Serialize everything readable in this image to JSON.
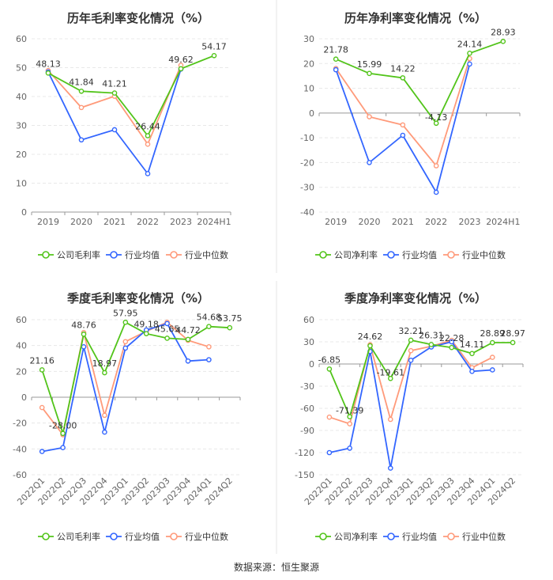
{
  "source": "数据来源：恒生聚源",
  "colors": {
    "company": "#52c41a",
    "industry_avg": "#3366ff",
    "industry_median": "#ff9a7a"
  },
  "chart_data": [
    {
      "type": "line",
      "title": "历年毛利率变化情况（%）",
      "categories": [
        "2019",
        "2020",
        "2021",
        "2022",
        "2023",
        "2024H1"
      ],
      "ylim": [
        0,
        60
      ],
      "yticks": [
        0,
        10,
        20,
        30,
        40,
        50,
        60
      ],
      "series": [
        {
          "name": "公司毛利率",
          "values": [
            48.13,
            41.84,
            41.21,
            26.44,
            49.62,
            54.17
          ]
        },
        {
          "name": "行业均值",
          "values": [
            48.5,
            25.0,
            28.5,
            13.3,
            49.5,
            null
          ]
        },
        {
          "name": "行业中位数",
          "values": [
            49.0,
            36.2,
            40.1,
            23.5,
            50.8,
            null
          ]
        }
      ],
      "labels": [
        "48.13",
        "41.84",
        "41.21",
        "26.44",
        "49.62",
        "54.17"
      ]
    },
    {
      "type": "line",
      "title": "历年净利率变化情况（%）",
      "categories": [
        "2019",
        "2020",
        "2021",
        "2022",
        "2023",
        "2024H1"
      ],
      "ylim": [
        -40,
        30
      ],
      "yticks": [
        -40,
        -30,
        -20,
        -10,
        0,
        10,
        20,
        30
      ],
      "series": [
        {
          "name": "公司净利率",
          "values": [
            21.78,
            15.99,
            14.22,
            -4.13,
            24.14,
            28.93
          ]
        },
        {
          "name": "行业均值",
          "values": [
            17.5,
            -20.0,
            -9.0,
            -32.0,
            19.8,
            null
          ]
        },
        {
          "name": "行业中位数",
          "values": [
            18.0,
            -1.5,
            -4.8,
            -21.3,
            22.0,
            null
          ]
        }
      ],
      "labels": [
        "21.78",
        "15.99",
        "14.22",
        "-4.13",
        "24.14",
        "28.93"
      ]
    },
    {
      "type": "line",
      "title": "季度毛利率变化情况（%）",
      "categories": [
        "2022Q1",
        "2022Q2",
        "2022Q3",
        "2022Q4",
        "2023Q1",
        "2023Q2",
        "2023Q3",
        "2023Q4",
        "2024Q1",
        "2024Q2"
      ],
      "ylim": [
        -60,
        60
      ],
      "yticks": [
        -60,
        -40,
        -20,
        0,
        20,
        40,
        60
      ],
      "series": [
        {
          "name": "公司毛利率",
          "values": [
            21.16,
            -28.0,
            48.76,
            18.97,
            57.95,
            49.18,
            45.65,
            44.72,
            54.68,
            53.75
          ]
        },
        {
          "name": "行业均值",
          "values": [
            -42.0,
            -39.0,
            39.0,
            -27.0,
            38.0,
            52.0,
            57.0,
            28.0,
            29.0,
            null
          ]
        },
        {
          "name": "行业中位数",
          "values": [
            -8.0,
            -29.0,
            50.0,
            -14.0,
            43.0,
            51.0,
            58.0,
            44.0,
            39.0,
            null
          ]
        }
      ],
      "labels": [
        "21.16",
        "-28.00",
        "48.76",
        "18.97",
        "57.95",
        "49.18",
        "45.65",
        "44.72",
        "54.68",
        "53.75"
      ]
    },
    {
      "type": "line",
      "title": "季度净利率变化情况（%）",
      "categories": [
        "2022Q1",
        "2022Q2",
        "2022Q3",
        "2022Q4",
        "2023Q1",
        "2023Q2",
        "2023Q3",
        "2023Q4",
        "2024Q1",
        "2024Q2"
      ],
      "ylim": [
        -150,
        60
      ],
      "yticks": [
        -150,
        -120,
        -90,
        -60,
        -30,
        0,
        30,
        60
      ],
      "series": [
        {
          "name": "公司净利率",
          "values": [
            -6.85,
            -71.39,
            24.62,
            -19.61,
            32.21,
            26.31,
            22.28,
            14.11,
            28.89,
            28.97
          ]
        },
        {
          "name": "行业均值",
          "values": [
            -120.0,
            -114.0,
            17.0,
            -141.0,
            5.0,
            23.0,
            30.0,
            -10.0,
            -8.0,
            null
          ]
        },
        {
          "name": "行业中位数",
          "values": [
            -72.0,
            -81.0,
            26.0,
            -75.0,
            18.0,
            24.0,
            32.0,
            -5.0,
            9.0,
            null
          ]
        }
      ],
      "labels": [
        "-6.85",
        "-71.39",
        "24.62",
        "-19.61",
        "32.21",
        "26.31",
        "22.28",
        "14.11",
        "28.89",
        "28.97"
      ]
    }
  ]
}
